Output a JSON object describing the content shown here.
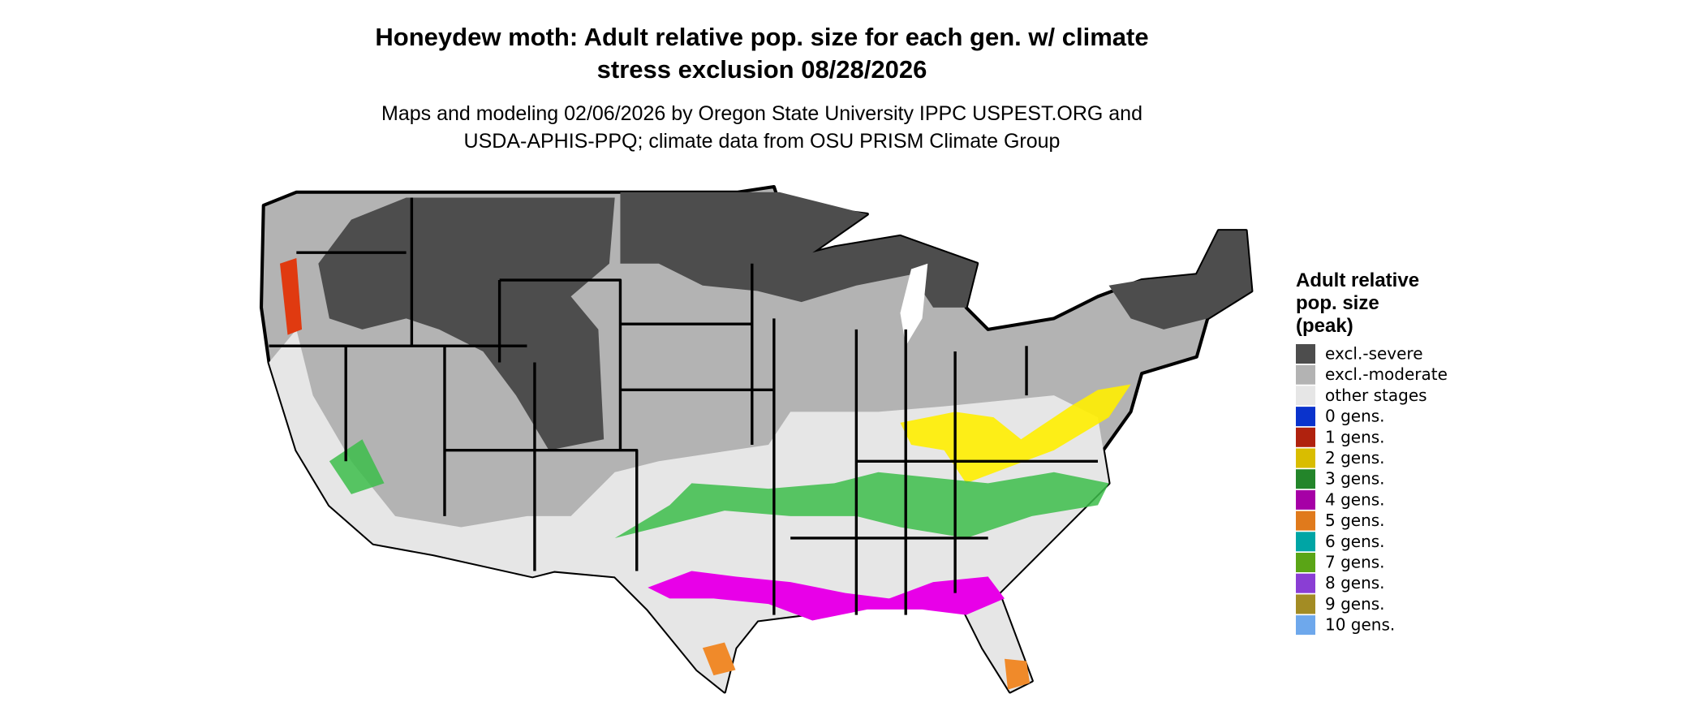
{
  "header": {
    "title_lines": [
      "Honeydew moth: Adult relative pop. size for each gen. w/ climate",
      "stress exclusion 08/28/2026"
    ],
    "subtitle_lines": [
      "Maps and modeling 02/06/2026 by Oregon State University IPPC USPEST.ORG and",
      "USDA-APHIS-PPQ; climate data from OSU PRISM Climate Group"
    ]
  },
  "legend": {
    "title_lines": [
      "Adult relative",
      "pop. size",
      "(peak)"
    ],
    "items": [
      {
        "label": "excl.-severe",
        "color": "#4d4d4d"
      },
      {
        "label": "excl.-moderate",
        "color": "#b3b3b3"
      },
      {
        "label": "other stages",
        "color": "#e6e6e6"
      },
      {
        "label": "0 gens.",
        "color": "#0a33cc"
      },
      {
        "label": "1 gens.",
        "color": "#b0220e"
      },
      {
        "label": "2 gens.",
        "color": "#d9bd00"
      },
      {
        "label": "3 gens.",
        "color": "#23852a"
      },
      {
        "label": "4 gens.",
        "color": "#a600a6"
      },
      {
        "label": "5 gens.",
        "color": "#e07a1c"
      },
      {
        "label": "6 gens.",
        "color": "#00a5a5"
      },
      {
        "label": "7 gens.",
        "color": "#5aa516"
      },
      {
        "label": "8 gens.",
        "color": "#8a3ed4"
      },
      {
        "label": "9 gens.",
        "color": "#a38c24"
      },
      {
        "label": "10 gens.",
        "color": "#6ea8ec"
      }
    ]
  }
}
